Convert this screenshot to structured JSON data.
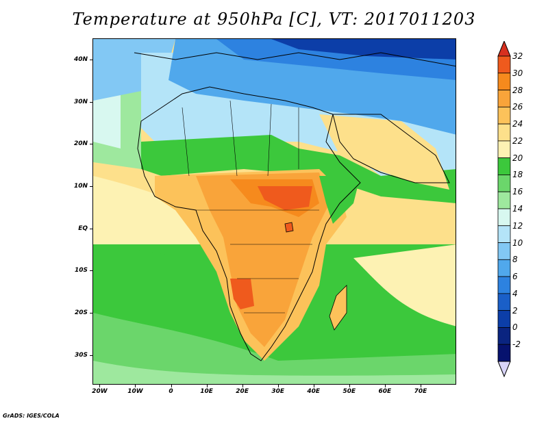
{
  "title": "Temperature at 950hPa [C], VT: 2017011203",
  "credit": "GrADS: IGES/COLA",
  "map": {
    "lat_range": [
      -37,
      45
    ],
    "lon_range": [
      -22,
      80
    ],
    "lat_ticks": [
      {
        "value": 40,
        "label": "40N"
      },
      {
        "value": 30,
        "label": "30N"
      },
      {
        "value": 20,
        "label": "20N"
      },
      {
        "value": 10,
        "label": "10N"
      },
      {
        "value": 0,
        "label": "EQ"
      },
      {
        "value": -10,
        "label": "10S"
      },
      {
        "value": -20,
        "label": "20S"
      },
      {
        "value": -30,
        "label": "30S"
      }
    ],
    "lon_ticks": [
      {
        "value": -20,
        "label": "20W"
      },
      {
        "value": -10,
        "label": "10W"
      },
      {
        "value": 0,
        "label": "0"
      },
      {
        "value": 10,
        "label": "10E"
      },
      {
        "value": 20,
        "label": "20E"
      },
      {
        "value": 30,
        "label": "30E"
      },
      {
        "value": 40,
        "label": "40E"
      },
      {
        "value": 50,
        "label": "50E"
      },
      {
        "value": 60,
        "label": "60E"
      },
      {
        "value": 70,
        "label": "70E"
      }
    ]
  },
  "colorbar": {
    "levels": [
      "32",
      "30",
      "28",
      "26",
      "24",
      "22",
      "20",
      "18",
      "16",
      "14",
      "12",
      "10",
      "8",
      "6",
      "4",
      "2",
      "0",
      "-2"
    ],
    "colors": [
      "#d7301f",
      "#ef5a1d",
      "#f68a1d",
      "#f9a43a",
      "#fcc25a",
      "#fde08b",
      "#fdf2b3",
      "#3cc83c",
      "#6bd66b",
      "#9ee89e",
      "#d8f8f0",
      "#b4e4f8",
      "#82c8f4",
      "#50a8ec",
      "#2d82e0",
      "#1a5fc8",
      "#0c3ea8",
      "#0a2480",
      "#06126e",
      "#d8d4f8"
    ]
  }
}
